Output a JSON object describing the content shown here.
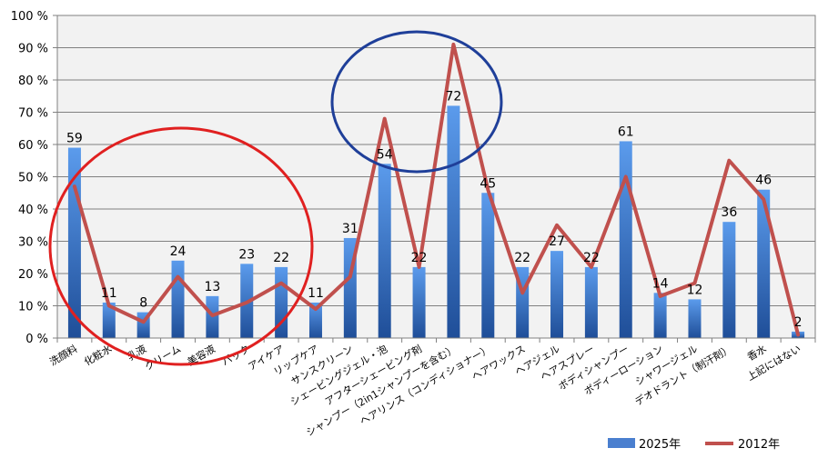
{
  "chart_data": {
    "type": "bar",
    "categories": [
      "洗顔料",
      "化粧水",
      "乳液",
      "クリーム",
      "美容液",
      "パック",
      "アイケア",
      "リップケア",
      "サンスクリーン",
      "シェービングジェル・泡",
      "アフターシェービング剤",
      "シャンプー（2in1シャンプーを含む）",
      "ヘアリンス（コンディショナー）",
      "ヘアワックス",
      "ヘアジェル",
      "ヘアスプレー",
      "ボディシャンプー",
      "ボディーローション",
      "シャワージェル",
      "デオドラント（制汗剤）",
      "香水",
      "上記にはない"
    ],
    "series": [
      {
        "name": "2025年",
        "kind": "bar",
        "color": "#4a7fcf",
        "values": [
          59,
          11,
          8,
          24,
          13,
          23,
          22,
          11,
          31,
          54,
          22,
          72,
          45,
          22,
          27,
          22,
          61,
          14,
          12,
          36,
          46,
          2
        ],
        "labels": [
          "59",
          "11",
          "8",
          "24",
          "13",
          "23",
          "22",
          "11",
          "31",
          "54",
          "22",
          "72",
          "45",
          "22",
          "27",
          "22",
          "61",
          "14",
          "12",
          "36",
          "46",
          "2"
        ]
      },
      {
        "name": "2012年",
        "kind": "line",
        "color": "#c0504d",
        "values": [
          47,
          10,
          5,
          19,
          7,
          11,
          17,
          9,
          19,
          68,
          22,
          91,
          46,
          14,
          35,
          22,
          50,
          13,
          17,
          55,
          43,
          1
        ]
      }
    ],
    "ylim": [
      0,
      100
    ],
    "yticks": [
      "0 %",
      "10 %",
      "20 %",
      "30 %",
      "40 %",
      "50 %",
      "60 %",
      "70 %",
      "80 %",
      "90 %",
      "100 %"
    ],
    "grid": true,
    "legend_position": "bottom-right",
    "annotations": [
      {
        "shape": "ellipse",
        "color": "#e02020",
        "encloses": "洗顔料–アイケア"
      },
      {
        "shape": "ellipse",
        "color": "#1f3f99",
        "encloses": "シェービングジェル・泡–シャンプー（2in1シャンプーを含む）"
      }
    ]
  }
}
